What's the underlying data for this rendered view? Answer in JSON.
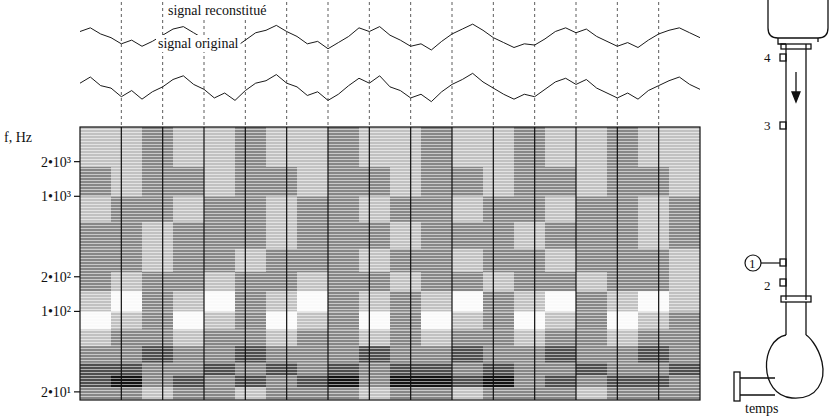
{
  "chart_data": [
    {
      "type": "line",
      "x": [
        0,
        0.25,
        0.5,
        0.75,
        1,
        1.25,
        1.5,
        1.75,
        2,
        2.25,
        2.5,
        2.75,
        3,
        3.25,
        3.5,
        3.75,
        4,
        4.25,
        4.5,
        4.75,
        5,
        5.25,
        5.5,
        5.75,
        6,
        6.25,
        6.5,
        6.75,
        7,
        7.25,
        7.5,
        7.75,
        8,
        8.25,
        8.5,
        8.75,
        9,
        9.25,
        9.5,
        9.75,
        10,
        10.25,
        10.5,
        10.75,
        11,
        11.25,
        11.5,
        11.75,
        12,
        12.25,
        12.5,
        12.75,
        13,
        13.25,
        13.5,
        13.75,
        14,
        14.25,
        14.5,
        14.75,
        15
      ],
      "series": [
        {
          "name": "signal reconstitué",
          "color": "#1a1a1a",
          "values": [
            8.6,
            8.9,
            8.4,
            8.1,
            7.6,
            7.9,
            7.4,
            7.8,
            8.3,
            8.8,
            9.0,
            8.5,
            8.0,
            7.5,
            7.7,
            7.3,
            7.9,
            8.5,
            8.7,
            9.1,
            8.6,
            8.2,
            7.6,
            7.8,
            7.2,
            7.7,
            8.2,
            8.9,
            8.6,
            9.0,
            8.3,
            7.9,
            7.4,
            7.6,
            7.1,
            7.8,
            8.4,
            8.8,
            9.2,
            8.7,
            8.1,
            7.7,
            7.3,
            7.6,
            7.5,
            8.0,
            8.6,
            8.9,
            8.5,
            8.8,
            8.2,
            7.8,
            7.4,
            7.7,
            7.3,
            7.9,
            8.4,
            8.7,
            8.9,
            8.5,
            8.1
          ]
        },
        {
          "name": "signal original",
          "color": "#1a1a1a",
          "values": [
            4.4,
            4.9,
            4.2,
            4.0,
            3.3,
            3.8,
            3.1,
            3.7,
            4.1,
            4.7,
            5.0,
            4.3,
            3.9,
            3.2,
            3.6,
            3.0,
            3.8,
            4.4,
            4.6,
            5.1,
            4.4,
            4.1,
            3.4,
            3.7,
            3.0,
            3.5,
            4.2,
            4.8,
            4.4,
            5.0,
            4.1,
            3.8,
            3.2,
            3.5,
            2.9,
            3.7,
            4.3,
            4.7,
            5.2,
            4.5,
            4.0,
            3.5,
            3.1,
            3.5,
            3.3,
            3.9,
            4.5,
            4.8,
            4.3,
            4.7,
            4.0,
            3.6,
            3.2,
            3.6,
            3.1,
            3.8,
            4.2,
            4.6,
            4.9,
            4.3,
            3.9
          ]
        }
      ],
      "xlim": [
        0,
        15
      ],
      "ylim": [
        1,
        11
      ],
      "xticks": [
        1,
        2,
        3,
        4,
        5,
        6,
        7,
        8,
        9,
        10,
        11,
        12,
        13,
        14
      ],
      "grid": true,
      "tick_labels": false,
      "line_style": "dashed"
    },
    {
      "type": "heatmap",
      "y_label": "f, Hz",
      "x_label": "temps",
      "xlim": [
        0,
        15
      ],
      "ylim": [
        17,
        4000
      ],
      "log": "y",
      "xticks": [
        1,
        2,
        3,
        4,
        5,
        6,
        7,
        8,
        9,
        10,
        11,
        12,
        13,
        14
      ],
      "yticks": [
        {
          "value": 20,
          "label": "2•10¹"
        },
        {
          "value": 100,
          "label": "1•10²"
        },
        {
          "value": 200,
          "label": "2•10²"
        },
        {
          "value": 1000,
          "label": "1•10³"
        },
        {
          "value": 2000,
          "label": "2•10³"
        }
      ],
      "x_edges": [
        0,
        0.75,
        1.5,
        2.25,
        3,
        3.75,
        4.5,
        5.25,
        6,
        6.75,
        7.5,
        8.25,
        9,
        9.75,
        10.5,
        11.25,
        12,
        12.75,
        13.5,
        14.25,
        15
      ],
      "y_edges": [
        17,
        22,
        28,
        36,
        50,
        70,
        100,
        150,
        220,
        350,
        600,
        1000,
        1800,
        4000
      ],
      "cells": [
        [
          2,
          2,
          1,
          2,
          2,
          1,
          2,
          2,
          2,
          1,
          2,
          2,
          1,
          2,
          2,
          2,
          1,
          2,
          2,
          2
        ],
        [
          3,
          4,
          2,
          3,
          2,
          3,
          2,
          3,
          4,
          2,
          4,
          4,
          3,
          4,
          2,
          3,
          2,
          3,
          3,
          2
        ],
        [
          3,
          3,
          2,
          2,
          3,
          2,
          3,
          2,
          3,
          2,
          3,
          3,
          2,
          3,
          2,
          2,
          3,
          2,
          2,
          3
        ],
        [
          2,
          2,
          3,
          2,
          2,
          3,
          2,
          2,
          2,
          3,
          2,
          2,
          3,
          2,
          2,
          3,
          2,
          2,
          3,
          2
        ],
        [
          1,
          2,
          2,
          1,
          2,
          2,
          1,
          2,
          2,
          1,
          2,
          1,
          2,
          2,
          1,
          2,
          2,
          1,
          2,
          2
        ],
        [
          0,
          1,
          2,
          0,
          1,
          2,
          0,
          1,
          2,
          0,
          2,
          0,
          1,
          2,
          0,
          1,
          2,
          0,
          1,
          2
        ],
        [
          1,
          0,
          2,
          1,
          0,
          2,
          1,
          0,
          2,
          1,
          2,
          1,
          0,
          2,
          1,
          0,
          2,
          1,
          0,
          1
        ],
        [
          2,
          1,
          2,
          2,
          1,
          2,
          2,
          1,
          2,
          2,
          1,
          2,
          2,
          1,
          2,
          2,
          1,
          2,
          2,
          1
        ],
        [
          2,
          2,
          1,
          2,
          2,
          1,
          2,
          2,
          2,
          1,
          2,
          2,
          1,
          2,
          2,
          1,
          2,
          2,
          2,
          1
        ],
        [
          2,
          2,
          1,
          2,
          2,
          2,
          1,
          2,
          2,
          2,
          1,
          2,
          2,
          2,
          1,
          2,
          2,
          2,
          1,
          2
        ],
        [
          1,
          2,
          2,
          1,
          2,
          2,
          1,
          2,
          2,
          1,
          2,
          2,
          1,
          2,
          2,
          1,
          2,
          2,
          1,
          2
        ],
        [
          2,
          1,
          2,
          2,
          1,
          2,
          2,
          1,
          2,
          2,
          1,
          2,
          2,
          1,
          2,
          2,
          1,
          2,
          2,
          1
        ],
        [
          1,
          1,
          2,
          1,
          1,
          2,
          1,
          1,
          2,
          1,
          1,
          2,
          1,
          1,
          2,
          1,
          1,
          2,
          1,
          1
        ]
      ],
      "zlim": [
        0,
        4
      ],
      "grid": true,
      "tick_labels": "y"
    }
  ],
  "diagram": {
    "labels": [
      "1",
      "2",
      "3",
      "4"
    ]
  }
}
